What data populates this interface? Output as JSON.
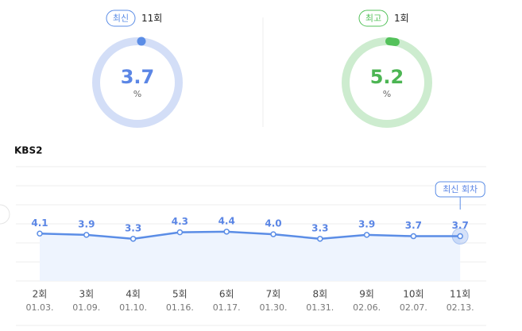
{
  "cards": [
    {
      "badge": "최신",
      "episode": "11회",
      "value": "3.7",
      "unit": "%"
    },
    {
      "badge": "최고",
      "episode": "1회",
      "value": "5.2",
      "unit": "%"
    }
  ],
  "chart_data": {
    "type": "line",
    "title": "KBS2",
    "categories": [
      "2회",
      "3회",
      "4회",
      "5회",
      "6회",
      "7회",
      "8회",
      "9회",
      "10회",
      "11회"
    ],
    "dates": [
      "01.03.",
      "01.09.",
      "01.10.",
      "01.16.",
      "01.17.",
      "01.30.",
      "01.31.",
      "02.06.",
      "02.07.",
      "02.13."
    ],
    "series": [
      {
        "name": "KBS2",
        "color": "#5b8de6",
        "values": [
          4.1,
          3.9,
          3.3,
          4.3,
          4.4,
          4.0,
          3.3,
          3.9,
          3.7,
          3.7
        ],
        "value_labels": [
          "4.1",
          "3.9",
          "3.3",
          "4.3",
          "4.4",
          "4.0",
          "3.3",
          "3.9",
          "3.7",
          "3.7"
        ]
      }
    ],
    "ylim": [
      -3.2,
      14.4
    ],
    "annotation": "최신 회차"
  }
}
